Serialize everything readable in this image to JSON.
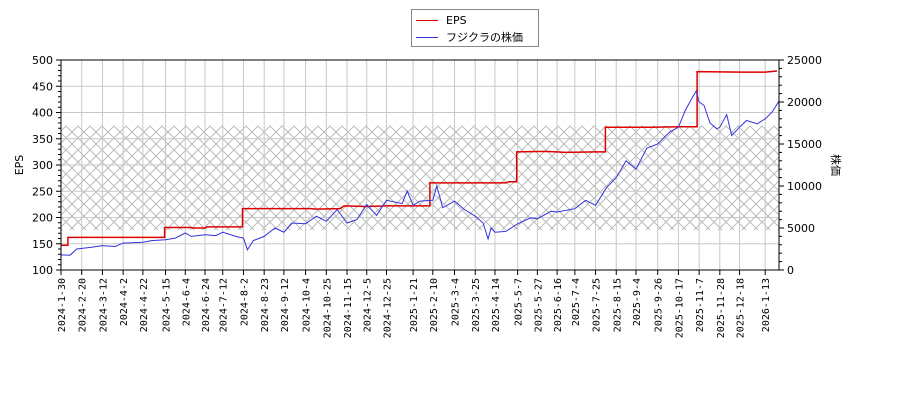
{
  "legend": {
    "items": [
      {
        "label": "EPS",
        "color": "#dd0000"
      },
      {
        "label": "フジクラの株価",
        "color": "#3333dd"
      }
    ]
  },
  "axes": {
    "left_label": "EPS",
    "right_label": "株価",
    "left_ticks": [
      "100",
      "150",
      "200",
      "250",
      "300",
      "350",
      "400",
      "450",
      "500"
    ],
    "right_ticks": [
      "0",
      "5000",
      "10000",
      "15000",
      "20000",
      "25000"
    ]
  },
  "chart_data": {
    "type": "line",
    "title": "",
    "xlabel": "",
    "ylabel": "EPS",
    "ylabel_right": "株価",
    "ylim": [
      100,
      500
    ],
    "ylim_right": [
      0,
      25000
    ],
    "grid": true,
    "legend_position": "top-center",
    "shaded_band": {
      "axis": "left",
      "from": 176,
      "to": 375,
      "style": "crosshatch"
    },
    "x_tick_labels": [
      "2024-1-30",
      "2024-2-20",
      "2024-3-12",
      "2024-4-2",
      "2024-4-22",
      "2024-5-15",
      "2024-6-4",
      "2024-6-24",
      "2024-7-12",
      "2024-8-2",
      "2024-8-23",
      "2024-9-12",
      "2024-10-4",
      "2024-10-25",
      "2024-11-15",
      "2024-12-5",
      "2024-12-25",
      "2025-1-21",
      "2025-2-10",
      "2025-3-4",
      "2025-3-25",
      "2025-4-14",
      "2025-5-7",
      "2025-5-27",
      "2025-6-16",
      "2025-7-4",
      "2025-7-25",
      "2025-8-15",
      "2025-9-4",
      "2025-9-26",
      "2025-10-17",
      "2025-11-7",
      "2025-11-28",
      "2025-12-18",
      "2026-1-13"
    ],
    "series": [
      {
        "name": "EPS",
        "axis": "left",
        "color": "#dd0000",
        "step": true,
        "points": [
          [
            "2024-1-30",
            147
          ],
          [
            "2024-2-6",
            147
          ],
          [
            "2024-2-6",
            162
          ],
          [
            "2024-5-14",
            162
          ],
          [
            "2024-5-14",
            181
          ],
          [
            "2024-6-10",
            181
          ],
          [
            "2024-6-12",
            180
          ],
          [
            "2024-6-24",
            180
          ],
          [
            "2024-6-26",
            182
          ],
          [
            "2024-8-1",
            182
          ],
          [
            "2024-8-1",
            217
          ],
          [
            "2024-10-10",
            217
          ],
          [
            "2024-10-14",
            216
          ],
          [
            "2024-11-8",
            217
          ],
          [
            "2024-11-12",
            222
          ],
          [
            "2024-12-5",
            221
          ],
          [
            "2024-12-25",
            222
          ],
          [
            "2025-2-7",
            222
          ],
          [
            "2025-2-7",
            266
          ],
          [
            "2025-4-25",
            266
          ],
          [
            "2025-4-28",
            268
          ],
          [
            "2025-5-6",
            268
          ],
          [
            "2025-5-6",
            325
          ],
          [
            "2025-6-5",
            326
          ],
          [
            "2025-6-25",
            324
          ],
          [
            "2025-7-25",
            325
          ],
          [
            "2025-8-4",
            325
          ],
          [
            "2025-8-4",
            372
          ],
          [
            "2025-9-20",
            372
          ],
          [
            "2025-10-17",
            373
          ],
          [
            "2025-11-5",
            373
          ],
          [
            "2025-11-5",
            478
          ],
          [
            "2025-12-20",
            477
          ],
          [
            "2026-1-13",
            477
          ],
          [
            "2026-1-25",
            479
          ]
        ]
      },
      {
        "name": "フジクラの株価",
        "axis": "right",
        "color": "#3333dd",
        "step": false,
        "points": [
          [
            "2024-1-30",
            1800
          ],
          [
            "2024-2-8",
            1750
          ],
          [
            "2024-2-15",
            2500
          ],
          [
            "2024-3-1",
            2700
          ],
          [
            "2024-3-12",
            2900
          ],
          [
            "2024-3-25",
            2800
          ],
          [
            "2024-4-2",
            3200
          ],
          [
            "2024-4-22",
            3300
          ],
          [
            "2024-5-1",
            3500
          ],
          [
            "2024-5-15",
            3600
          ],
          [
            "2024-5-25",
            3800
          ],
          [
            "2024-6-4",
            4400
          ],
          [
            "2024-6-10",
            4000
          ],
          [
            "2024-6-24",
            4200
          ],
          [
            "2024-7-5",
            4100
          ],
          [
            "2024-7-12",
            4500
          ],
          [
            "2024-7-25",
            4000
          ],
          [
            "2024-8-2",
            3800
          ],
          [
            "2024-8-6",
            2400
          ],
          [
            "2024-8-12",
            3500
          ],
          [
            "2024-8-23",
            4000
          ],
          [
            "2024-9-3",
            5000
          ],
          [
            "2024-9-12",
            4500
          ],
          [
            "2024-9-20",
            5600
          ],
          [
            "2024-10-4",
            5500
          ],
          [
            "2024-10-15",
            6400
          ],
          [
            "2024-10-25",
            5800
          ],
          [
            "2024-11-5",
            7200
          ],
          [
            "2024-11-15",
            5600
          ],
          [
            "2024-11-25",
            6000
          ],
          [
            "2024-12-5",
            7800
          ],
          [
            "2024-12-15",
            6500
          ],
          [
            "2024-12-25",
            8300
          ],
          [
            "2025-1-10",
            7900
          ],
          [
            "2025-1-15",
            9400
          ],
          [
            "2025-1-21",
            7700
          ],
          [
            "2025-1-28",
            8200
          ],
          [
            "2025-2-10",
            8300
          ],
          [
            "2025-2-14",
            10000
          ],
          [
            "2025-2-20",
            7400
          ],
          [
            "2025-3-4",
            8200
          ],
          [
            "2025-3-14",
            7200
          ],
          [
            "2025-3-25",
            6400
          ],
          [
            "2025-4-2",
            5600
          ],
          [
            "2025-4-7",
            3700
          ],
          [
            "2025-4-10",
            5000
          ],
          [
            "2025-4-14",
            4500
          ],
          [
            "2025-4-25",
            4600
          ],
          [
            "2025-5-7",
            5500
          ],
          [
            "2025-5-20",
            6200
          ],
          [
            "2025-5-27",
            6100
          ],
          [
            "2025-6-10",
            7000
          ],
          [
            "2025-6-16",
            6900
          ],
          [
            "2025-7-4",
            7300
          ],
          [
            "2025-7-15",
            8300
          ],
          [
            "2025-7-25",
            7700
          ],
          [
            "2025-8-5",
            9800
          ],
          [
            "2025-8-15",
            11000
          ],
          [
            "2025-8-25",
            13000
          ],
          [
            "2025-9-4",
            12000
          ],
          [
            "2025-9-15",
            14500
          ],
          [
            "2025-9-26",
            15000
          ],
          [
            "2025-10-8",
            16400
          ],
          [
            "2025-10-17",
            17000
          ],
          [
            "2025-10-24",
            19000
          ],
          [
            "2025-10-31",
            20500
          ],
          [
            "2025-11-4",
            21300
          ],
          [
            "2025-11-7",
            20000
          ],
          [
            "2025-11-12",
            19600
          ],
          [
            "2025-11-18",
            17500
          ],
          [
            "2025-11-25",
            16800
          ],
          [
            "2025-11-28",
            17000
          ],
          [
            "2025-12-5",
            18500
          ],
          [
            "2025-12-10",
            16000
          ],
          [
            "2025-12-18",
            17000
          ],
          [
            "2025-12-25",
            17800
          ],
          [
            "2026-1-5",
            17400
          ],
          [
            "2026-1-13",
            18000
          ],
          [
            "2026-1-20",
            18800
          ],
          [
            "2026-1-27",
            20100
          ]
        ]
      }
    ]
  }
}
